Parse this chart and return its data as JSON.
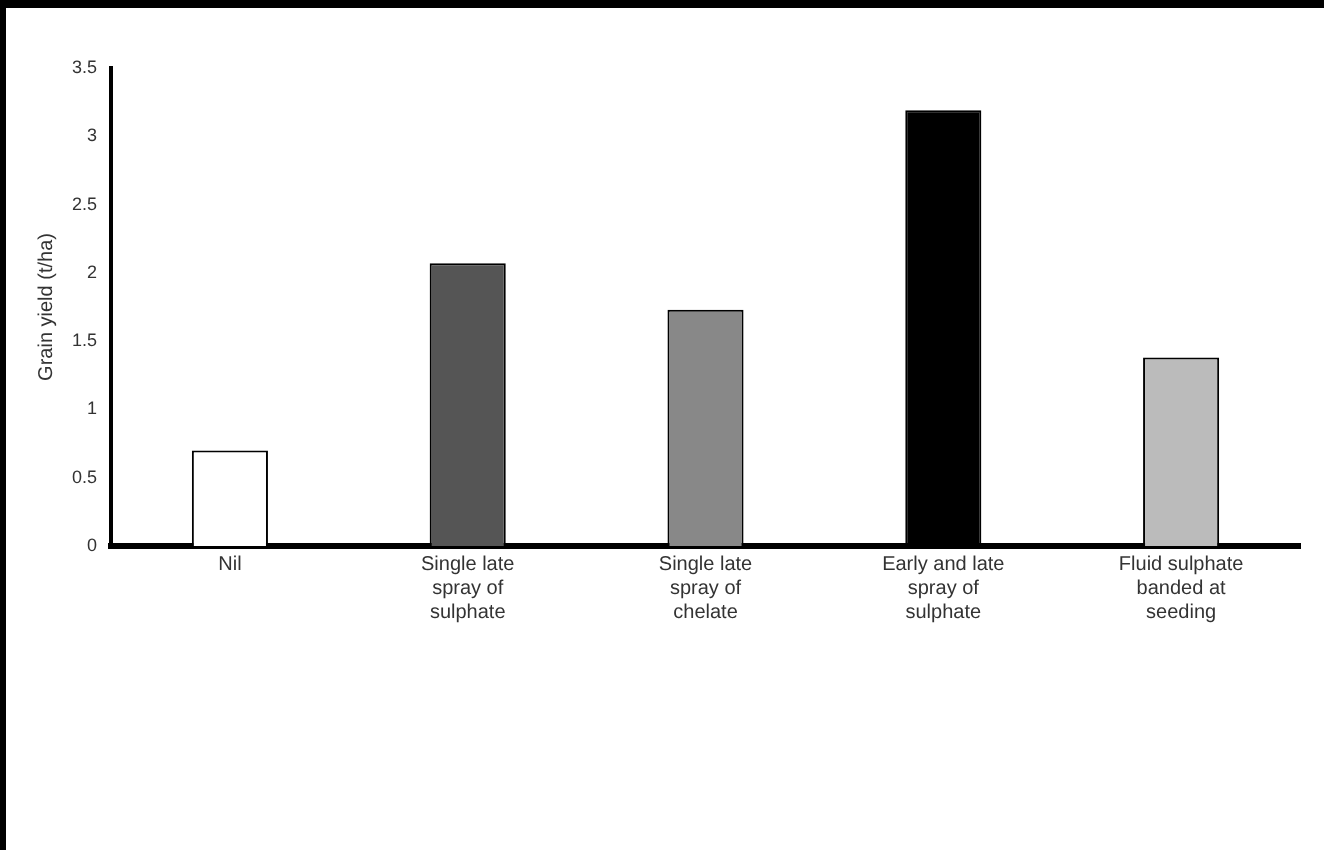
{
  "chart_data": {
    "type": "bar",
    "ylabel": "Grain yield (t/ha)",
    "categories": [
      "Nil",
      "Single late spray of sulphate",
      "Single late spray of chelate",
      "Early and late spray of sulphate",
      "Fluid sulphate banded at seeding"
    ],
    "values": [
      0.7,
      2.07,
      1.73,
      3.19,
      1.38
    ],
    "colors": [
      "#ffffff",
      "#555555",
      "#888888",
      "#000000",
      "#bbbbbb"
    ],
    "ylim": [
      0,
      3.5
    ],
    "yticks": [
      0,
      0.5,
      1,
      1.5,
      2,
      2.5,
      3,
      3.5
    ],
    "grid": false,
    "legend": false
  }
}
